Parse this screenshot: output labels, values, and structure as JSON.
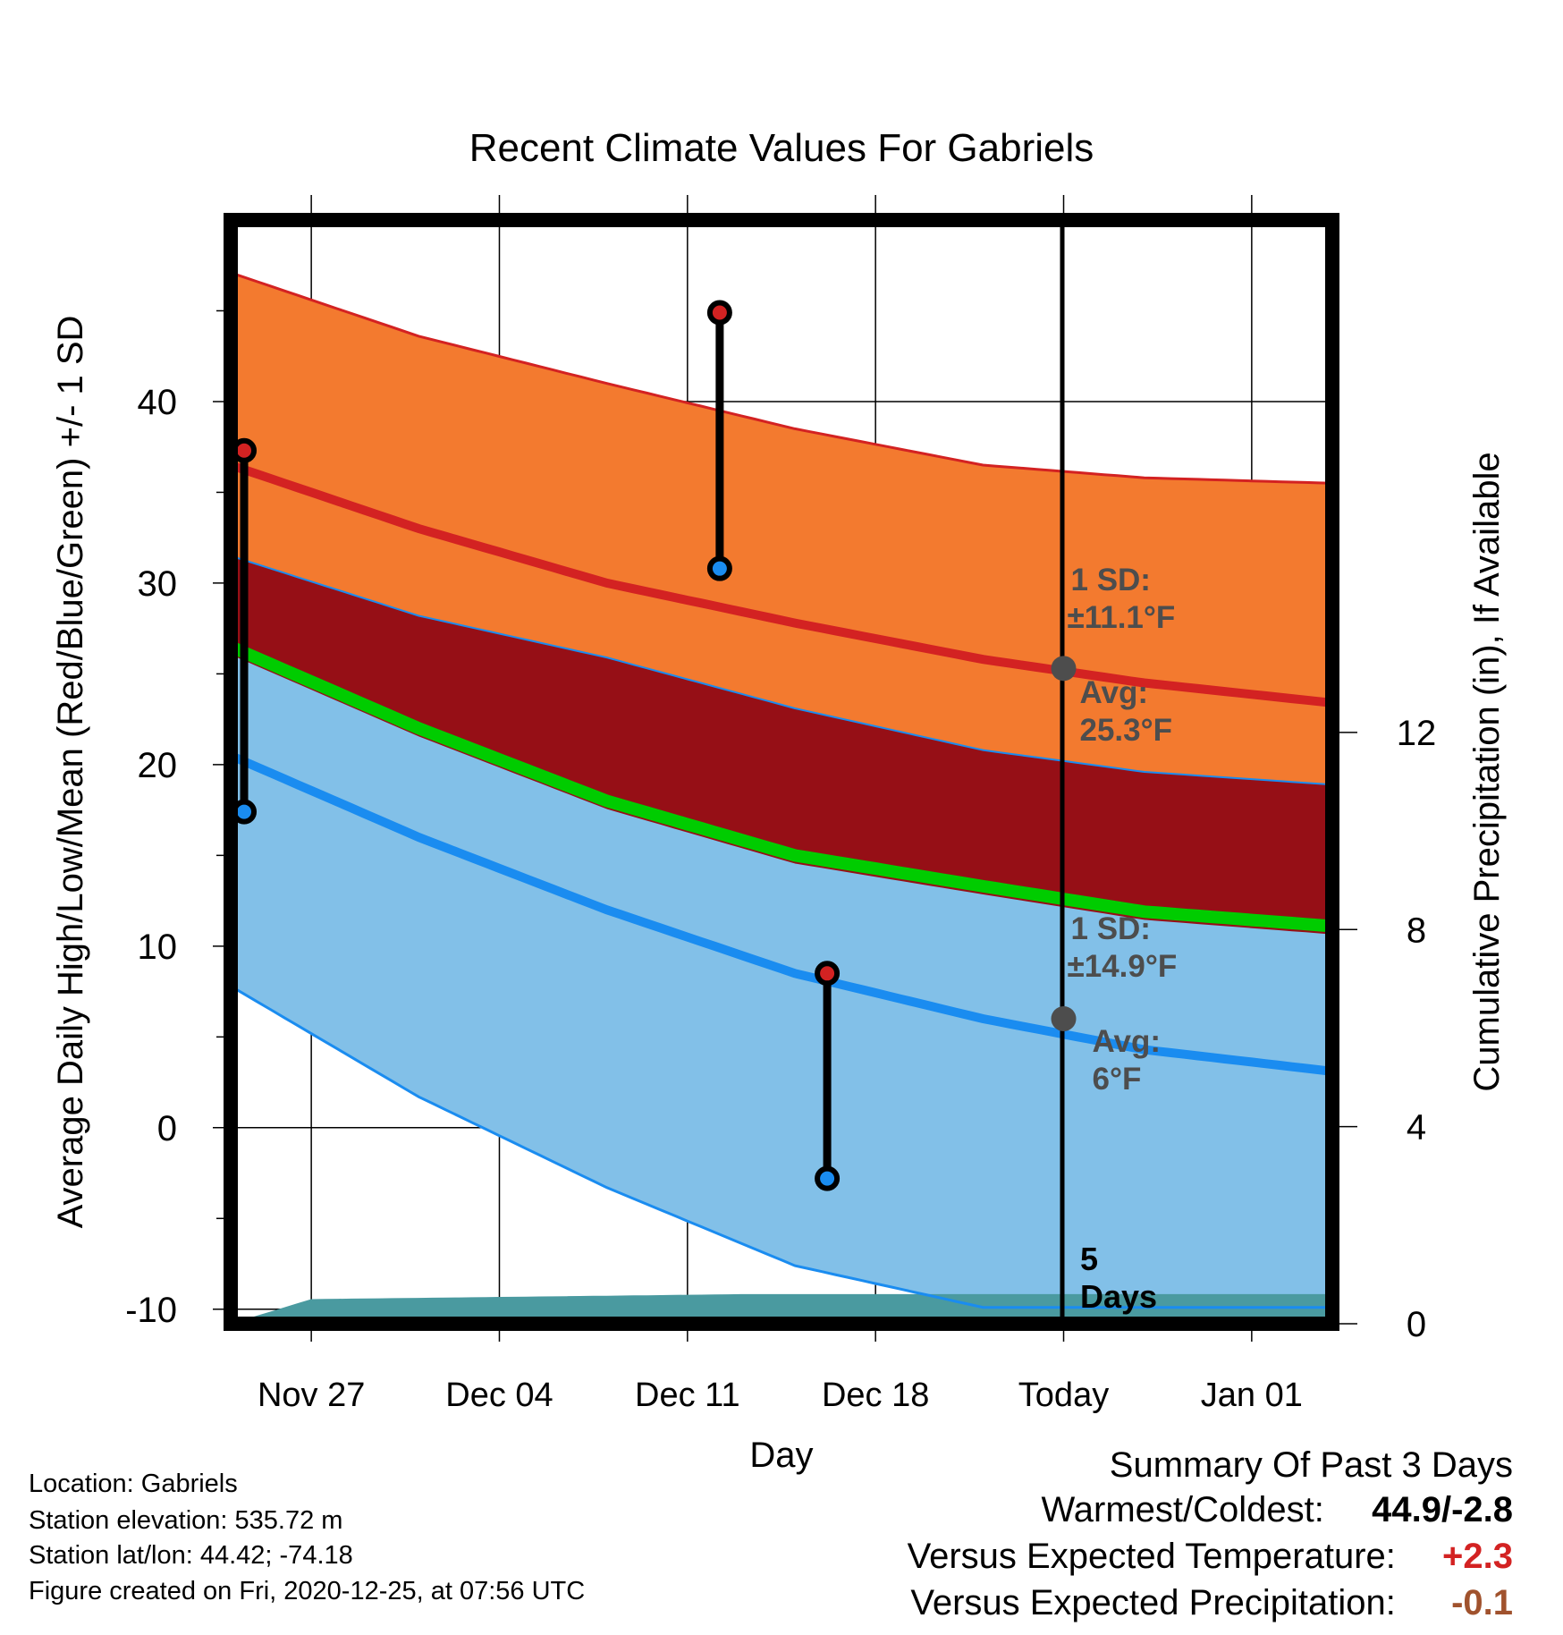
{
  "chart_data": {
    "type": "area",
    "title": "Recent Climate Values For Gabriels",
    "xlabel": "Day",
    "ylabel": "Average Daily High/Low/Mean (Red/Blue/Green) +/- 1 SD",
    "y2label": "Cumulative Precipitation (in), If Available",
    "x_ticks": [
      "Nov 27",
      "Dec 04",
      "Dec 11",
      "Dec 18",
      "Today",
      "Jan 01"
    ],
    "y_ticks": [
      "-10",
      "0",
      "10",
      "20",
      "30",
      "40"
    ],
    "y2_ticks": [
      "0",
      "4",
      "8",
      "12"
    ],
    "ylim": [
      -10.8,
      50
    ],
    "y2lim": [
      0,
      22.4
    ],
    "x_range_days": [
      -31,
      10
    ],
    "today_marker": "5 Days",
    "series": [
      {
        "role": "high-mean",
        "color": "#d32222",
        "x": [
          -31,
          -24,
          -17,
          -10,
          -3,
          3,
          10
        ],
        "y": [
          36.5,
          33.0,
          30.0,
          27.8,
          25.8,
          24.5,
          23.4
        ]
      },
      {
        "role": "high-plus-sd",
        "color": "#f37a2f",
        "x": [
          -31,
          -24,
          -17,
          -10,
          -3,
          3,
          10
        ],
        "y": [
          47.1,
          43.6,
          41.0,
          38.5,
          36.5,
          35.8,
          35.5
        ]
      },
      {
        "role": "high-minus-sd",
        "color": "#960f16",
        "x": [
          -31,
          -24,
          -17,
          -10,
          -3,
          3,
          10
        ],
        "y": [
          31.5,
          28.2,
          25.9,
          23.1,
          20.8,
          19.6,
          18.9
        ]
      },
      {
        "role": "low-mean",
        "color": "#1a8cf0",
        "x": [
          -31,
          -24,
          -17,
          -10,
          -3,
          3,
          10
        ],
        "y": [
          20.5,
          16.0,
          12.0,
          8.5,
          6.0,
          4.3,
          3.1
        ]
      },
      {
        "role": "low-plus-sd",
        "color": "#82c0e8",
        "x": [
          -31,
          -24,
          -17,
          -10,
          -3,
          3,
          10
        ],
        "y": [
          26.0,
          21.5,
          17.5,
          14.5,
          12.8,
          11.4,
          10.6
        ]
      },
      {
        "role": "low-minus-sd",
        "color": "#1a8cf0",
        "x": [
          -31,
          -24,
          -17,
          -10,
          -3,
          3,
          10
        ],
        "y": [
          7.8,
          1.7,
          -3.3,
          -7.6,
          -9.9,
          -9.9,
          -9.9
        ]
      },
      {
        "role": "mean",
        "color": "#00cc00",
        "x": [
          -31,
          -24,
          -17,
          -10,
          -3,
          3,
          10
        ],
        "y": [
          26.5,
          22.0,
          18.0,
          15.0,
          13.3,
          11.9,
          11.1
        ]
      },
      {
        "role": "precipitation",
        "color": "#4a9aa0",
        "x": [
          -31,
          -28,
          -12,
          10
        ],
        "y": [
          0,
          0.5,
          0.6,
          0.6
        ]
      }
    ],
    "observations": [
      {
        "x": -30.5,
        "high": 37.3,
        "low": 17.4
      },
      {
        "x": -12.8,
        "high": 44.9,
        "low": 30.8
      },
      {
        "x": -8.8,
        "high": 8.5,
        "low": -2.8
      }
    ],
    "annotations": {
      "high_sd_label": "1 SD:",
      "high_sd_value": "±11.1°F",
      "high_avg_label": "Avg:",
      "high_avg_value": "25.3°F",
      "high_avg_y": 25.3,
      "low_sd_label": "1 SD:",
      "low_sd_value": "±14.9°F",
      "low_avg_label": "Avg:",
      "low_avg_value": "6°F",
      "low_avg_y": 6
    },
    "colors": {
      "high_band": "#f37a2f",
      "mid_band": "#960f16",
      "low_band": "#82c0e8",
      "high_line": "#d32222",
      "low_line": "#1a8cf0",
      "mean_line": "#00cc00",
      "precip": "#4a9aa0",
      "annotation_text": "#4d4d4d",
      "obs_high_dot": "#d32222",
      "obs_low_dot": "#1a8cf0"
    }
  },
  "footer": {
    "location": "Location: Gabriels",
    "elevation": "Station elevation: 535.72 m",
    "latlon": "Station lat/lon: 44.42; -74.18",
    "created": "Figure created on Fri, 2020-12-25, at 07:56 UTC"
  },
  "summary": {
    "title": "Summary Of Past 3 Days",
    "warm_cold_label": "Warmest/Coldest:",
    "warm_cold_value": "44.9/-2.8",
    "temp_label": "Versus Expected Temperature:",
    "temp_value": "+2.3",
    "temp_color": "#d32222",
    "precip_label": "Versus Expected Precipitation:",
    "precip_value": "-0.1",
    "precip_color": "#a0522d"
  }
}
